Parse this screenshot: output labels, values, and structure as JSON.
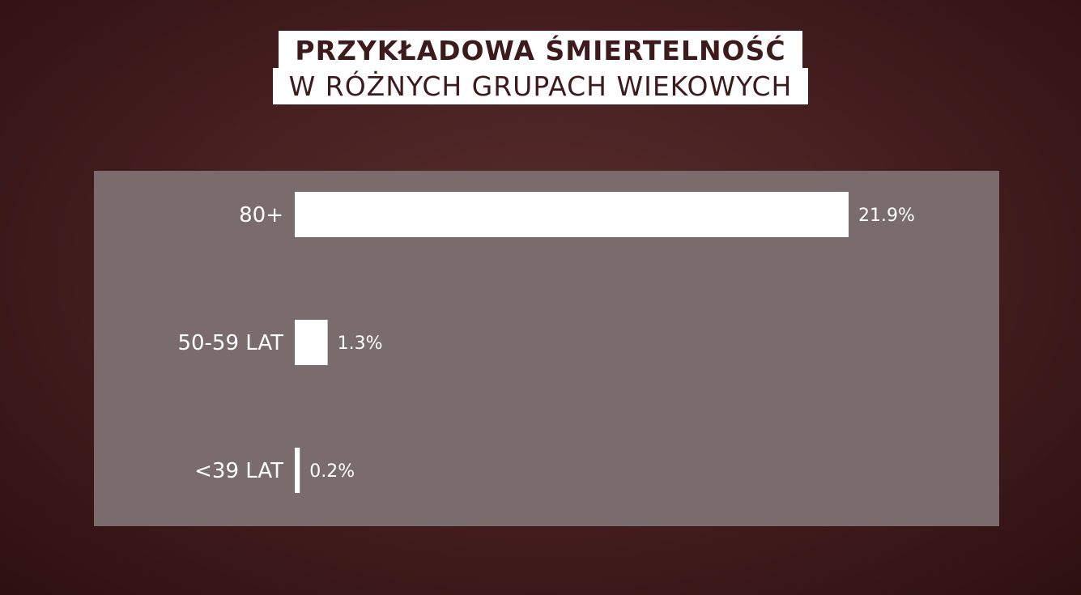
{
  "chart_data": {
    "type": "bar",
    "orientation": "horizontal",
    "title": "PRZYKŁADOWA ŚMIERTELNOŚĆ",
    "subtitle": "W RÓŻNYCH GRUPACH WIEKOWYCH",
    "categories": [
      "80+",
      "50-59 LAT",
      "<39 LAT"
    ],
    "values": [
      21.9,
      1.3,
      0.2
    ],
    "value_labels": [
      "21.9%",
      "1.3%",
      "0.2%"
    ],
    "xlim": [
      0,
      21.9
    ],
    "grid": false,
    "legend": "none",
    "colors": {
      "background": "#4a2223",
      "panel": "#7a6c6c",
      "bar": "#ffffff",
      "title_box": "#ffffff",
      "title_text": "#3d1a1c"
    }
  }
}
